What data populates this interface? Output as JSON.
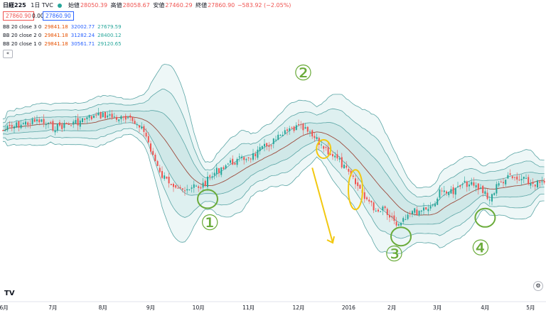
{
  "header": {
    "symbol": "日経225",
    "interval": "1日",
    "exchange": "TVC",
    "open_label": "始値",
    "open": "28050.39",
    "high_label": "高値",
    "high": "28058.67",
    "low_label": "安値",
    "low": "27460.29",
    "close_label": "終値",
    "close": "27860.90",
    "change": "−583.92 (−2.05%)",
    "price_box_left": "27860.90",
    "zero": "0.00",
    "price_box_right": "27860.90"
  },
  "bb_rows": [
    {
      "label": "BB 20 close 3 0",
      "basis": "29841.18",
      "upper": "32002.77",
      "lower": "27679.59"
    },
    {
      "label": "BB 20 close 2 0",
      "basis": "29841.18",
      "upper": "31282.24",
      "lower": "28400.12"
    },
    {
      "label": "BB 20 close 1 0",
      "basis": "29841.18",
      "upper": "30561.71",
      "lower": "29120.65"
    }
  ],
  "collapse_icon": "«",
  "logo": "TV",
  "settings_icon": "⚙",
  "colors": {
    "up": "#26a69a",
    "down": "#ef5350",
    "basis": "#9c4a3c",
    "band": "#5aa5a5",
    "fill": "#e3f2f2",
    "annotation_green": "#6aab3a",
    "annotation_yellow": "#f2c811"
  },
  "chart_data": {
    "type": "candlestick",
    "title": "",
    "xlabel": "",
    "ylabel": "",
    "x_ticks": [
      "6月",
      "7月",
      "8月",
      "9月",
      "10月",
      "11月",
      "12月",
      "2016",
      "2月",
      "3月",
      "4月",
      "5月"
    ],
    "x_tick_pos": [
      0.5,
      22,
      44,
      65,
      86,
      108,
      130,
      152,
      171,
      191,
      212,
      232
    ],
    "y_range": [
      36,
      0
    ],
    "price_path": [
      [
        0,
        12
      ],
      [
        8,
        11
      ],
      [
        16,
        10.5
      ],
      [
        22,
        11.5
      ],
      [
        30,
        11
      ],
      [
        38,
        10
      ],
      [
        44,
        9.5
      ],
      [
        50,
        10
      ],
      [
        56,
        10.5
      ],
      [
        60,
        11
      ],
      [
        63,
        13
      ],
      [
        65,
        15
      ],
      [
        67,
        17
      ],
      [
        69,
        19
      ],
      [
        72,
        20
      ],
      [
        75,
        20.5
      ],
      [
        78,
        21
      ],
      [
        81,
        22
      ],
      [
        84,
        21
      ],
      [
        87,
        21
      ],
      [
        90,
        20
      ],
      [
        94,
        18.5
      ],
      [
        98,
        17.5
      ],
      [
        102,
        17
      ],
      [
        106,
        16.5
      ],
      [
        110,
        16
      ],
      [
        114,
        15
      ],
      [
        118,
        14
      ],
      [
        122,
        13
      ],
      [
        126,
        12
      ],
      [
        130,
        11.5
      ],
      [
        133,
        12
      ],
      [
        136,
        13
      ],
      [
        139,
        14
      ],
      [
        142,
        15
      ],
      [
        145,
        16
      ],
      [
        148,
        17
      ],
      [
        150,
        18
      ],
      [
        153,
        19.5
      ],
      [
        156,
        21
      ],
      [
        159,
        22.5
      ],
      [
        162,
        24
      ],
      [
        165,
        25
      ],
      [
        167,
        24
      ],
      [
        169,
        25
      ],
      [
        171,
        26
      ],
      [
        173,
        27
      ],
      [
        176,
        26
      ],
      [
        179,
        25
      ],
      [
        182,
        25
      ],
      [
        185,
        24.5
      ],
      [
        189,
        24
      ],
      [
        192,
        22
      ],
      [
        195,
        21.5
      ],
      [
        198,
        22
      ],
      [
        201,
        21
      ],
      [
        204,
        20.5
      ],
      [
        207,
        21
      ],
      [
        210,
        21.5
      ],
      [
        212,
        22
      ],
      [
        214,
        23
      ],
      [
        217,
        21
      ],
      [
        220,
        20
      ],
      [
        223,
        19.5
      ],
      [
        226,
        20
      ],
      [
        229,
        20
      ],
      [
        232,
        20.5
      ],
      [
        235,
        20.5
      ],
      [
        238,
        20.5
      ]
    ],
    "annotations": [
      {
        "label": "①",
        "x": 91,
        "y": 27,
        "color": "green"
      },
      {
        "label": "②",
        "x": 132,
        "y": 3,
        "color": "green"
      },
      {
        "label": "③",
        "x": 172,
        "y": 32,
        "color": "green"
      },
      {
        "label": "④",
        "x": 210,
        "y": 31,
        "color": "green"
      }
    ],
    "circles": [
      {
        "x": 90,
        "y": 23,
        "color": "green"
      },
      {
        "x": 141,
        "y": 15,
        "color": "yellow"
      },
      {
        "x": 155,
        "y": 21.5,
        "color": "yellow"
      },
      {
        "x": 175,
        "y": 29,
        "color": "green"
      },
      {
        "x": 212,
        "y": 26,
        "color": "green"
      }
    ],
    "arrow": {
      "from": [
        136,
        18
      ],
      "to": [
        145,
        30
      ],
      "color": "yellow"
    }
  }
}
